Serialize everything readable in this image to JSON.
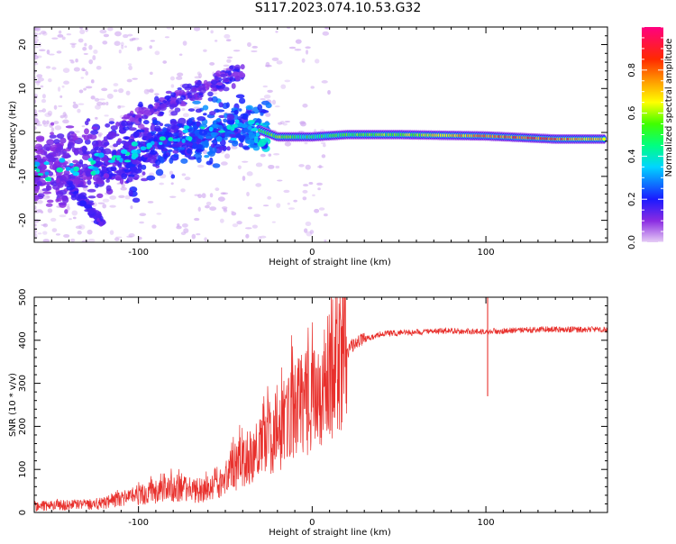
{
  "title": "S117.2023.074.10.53.G32",
  "chart_data": [
    {
      "type": "heatmap",
      "xlabel": "Height of straight line (km)",
      "ylabel": "Frequency (Hz)",
      "xlim": [
        -160,
        170
      ],
      "ylim": [
        -25,
        24
      ],
      "x_ticks": [
        -100,
        0,
        100
      ],
      "x_tick_labels": [
        "-100",
        "0",
        "100"
      ],
      "y_ticks": [
        -20,
        -10,
        0,
        10,
        20
      ],
      "y_tick_labels": [
        "-20",
        "-10",
        "0",
        "10",
        "20"
      ],
      "grid": false,
      "colormap": "rainbow (purple → blue → cyan → green → yellow → orange → red → magenta)",
      "colorbar": {
        "label": "Normalized spectral amplitude",
        "range": [
          0,
          1
        ],
        "ticks": [
          0.0,
          0.2,
          0.4,
          0.6,
          0.8
        ],
        "tick_labels": [
          "0.0",
          "0.2",
          "0.4",
          "0.6",
          "0.8"
        ]
      },
      "trend": {
        "description_points": [
          {
            "x": -160,
            "y": -8,
            "amp": 0.12
          },
          {
            "x": -130,
            "y": -8,
            "amp": 0.15
          },
          {
            "x": -110,
            "y": -6,
            "amp": 0.2
          },
          {
            "x": -90,
            "y": -3,
            "amp": 0.25
          },
          {
            "x": -70,
            "y": -1,
            "amp": 0.3
          },
          {
            "x": -55,
            "y": 0,
            "amp": 0.35
          },
          {
            "x": -40,
            "y": 2,
            "amp": 0.3
          },
          {
            "x": -20,
            "y": -1,
            "amp": 0.6
          },
          {
            "x": 0,
            "y": -1,
            "amp": 0.45
          },
          {
            "x": 20,
            "y": -0.5,
            "amp": 0.55
          },
          {
            "x": 50,
            "y": -0.5,
            "amp": 0.6
          },
          {
            "x": 100,
            "y": -0.8,
            "amp": 0.8
          },
          {
            "x": 140,
            "y": -1.5,
            "amp": 0.85
          },
          {
            "x": 165,
            "y": -1.5,
            "amp": 0.7
          }
        ]
      }
    },
    {
      "type": "line",
      "xlabel": "Height of straight line (km)",
      "ylabel": "SNR (10 * v/v)",
      "xlim": [
        -160,
        170
      ],
      "ylim": [
        0,
        500
      ],
      "x_ticks": [
        -100,
        0,
        100
      ],
      "x_tick_labels": [
        "-100",
        "0",
        "100"
      ],
      "y_ticks": [
        0,
        100,
        200,
        300,
        400,
        500
      ],
      "y_tick_labels": [
        "0",
        "100",
        "200",
        "300",
        "400",
        "500"
      ],
      "grid": false,
      "series_color": "#e8302c",
      "envelope": [
        {
          "x": -160,
          "y": 15
        },
        {
          "x": -120,
          "y": 20
        },
        {
          "x": -100,
          "y": 40
        },
        {
          "x": -80,
          "y": 55
        },
        {
          "x": -60,
          "y": 50
        },
        {
          "x": -40,
          "y": 120
        },
        {
          "x": -25,
          "y": 170
        },
        {
          "x": -10,
          "y": 230
        },
        {
          "x": 5,
          "y": 300
        },
        {
          "x": 15,
          "y": 350
        },
        {
          "x": 25,
          "y": 395
        },
        {
          "x": 40,
          "y": 415
        },
        {
          "x": 80,
          "y": 422
        },
        {
          "x": 100,
          "y": 420
        },
        {
          "x": 130,
          "y": 425
        },
        {
          "x": 170,
          "y": 425
        }
      ],
      "spike": {
        "x": 101,
        "y_max": 510,
        "y_min": 270
      }
    }
  ]
}
